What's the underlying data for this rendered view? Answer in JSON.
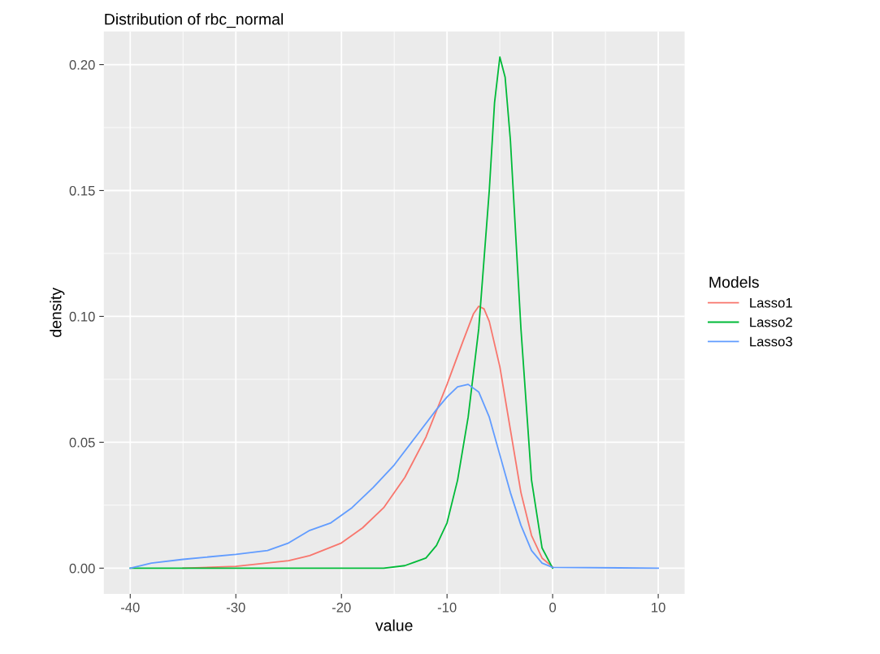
{
  "chart_data": {
    "type": "line",
    "title": "Distribution of rbc_normal",
    "xlabel": "value",
    "ylabel": "density",
    "legend_title": "Models",
    "series": [
      {
        "name": "Lasso1",
        "color": "#f8766d",
        "x": [
          -35,
          -30,
          -25,
          -23,
          -20,
          -18,
          -16,
          -14,
          -12,
          -10,
          -8.5,
          -7.5,
          -7,
          -6.5,
          -6,
          -5,
          -4,
          -3,
          -2,
          -1,
          0
        ],
        "values": [
          0.0,
          0.0007,
          0.003,
          0.005,
          0.01,
          0.016,
          0.024,
          0.036,
          0.052,
          0.073,
          0.09,
          0.101,
          0.104,
          0.103,
          0.098,
          0.08,
          0.055,
          0.03,
          0.013,
          0.004,
          0.0005
        ]
      },
      {
        "name": "Lasso2",
        "color": "#00ba38",
        "x": [
          -40,
          -16,
          -14,
          -12,
          -11,
          -10,
          -9,
          -8,
          -7,
          -6,
          -5.5,
          -5,
          -4.5,
          -4,
          -3,
          -2,
          -1,
          0
        ],
        "values": [
          0.0,
          0.0,
          0.001,
          0.004,
          0.009,
          0.018,
          0.035,
          0.06,
          0.095,
          0.15,
          0.185,
          0.203,
          0.195,
          0.17,
          0.095,
          0.035,
          0.008,
          0.0
        ]
      },
      {
        "name": "Lasso3",
        "color": "#619cff",
        "x": [
          -40,
          -38,
          -35,
          -30,
          -27,
          -25,
          -23,
          -21,
          -19,
          -17,
          -15,
          -13,
          -11,
          -10,
          -9,
          -8,
          -7,
          -6,
          -5,
          -4,
          -3,
          -2,
          -1,
          0,
          10
        ],
        "values": [
          0.0,
          0.002,
          0.0035,
          0.0055,
          0.007,
          0.01,
          0.015,
          0.018,
          0.024,
          0.032,
          0.041,
          0.052,
          0.063,
          0.068,
          0.072,
          0.073,
          0.07,
          0.06,
          0.045,
          0.03,
          0.017,
          0.007,
          0.002,
          0.0003,
          0.0
        ]
      }
    ],
    "xlim": [
      -42.5,
      12.5
    ],
    "xticks": [
      -40,
      -30,
      -20,
      -10,
      0,
      10
    ],
    "ylim": [
      -0.0102,
      0.2132
    ],
    "yticks": [
      {
        "value": 0,
        "label": "0.00"
      },
      {
        "value": 0.05,
        "label": "0.05"
      },
      {
        "value": 0.1,
        "label": "0.10"
      },
      {
        "value": 0.15,
        "label": "0.15"
      },
      {
        "value": 0.2,
        "label": "0.20"
      }
    ],
    "grid": true,
    "legend": "right",
    "line_style": "solid",
    "marker": "none"
  }
}
